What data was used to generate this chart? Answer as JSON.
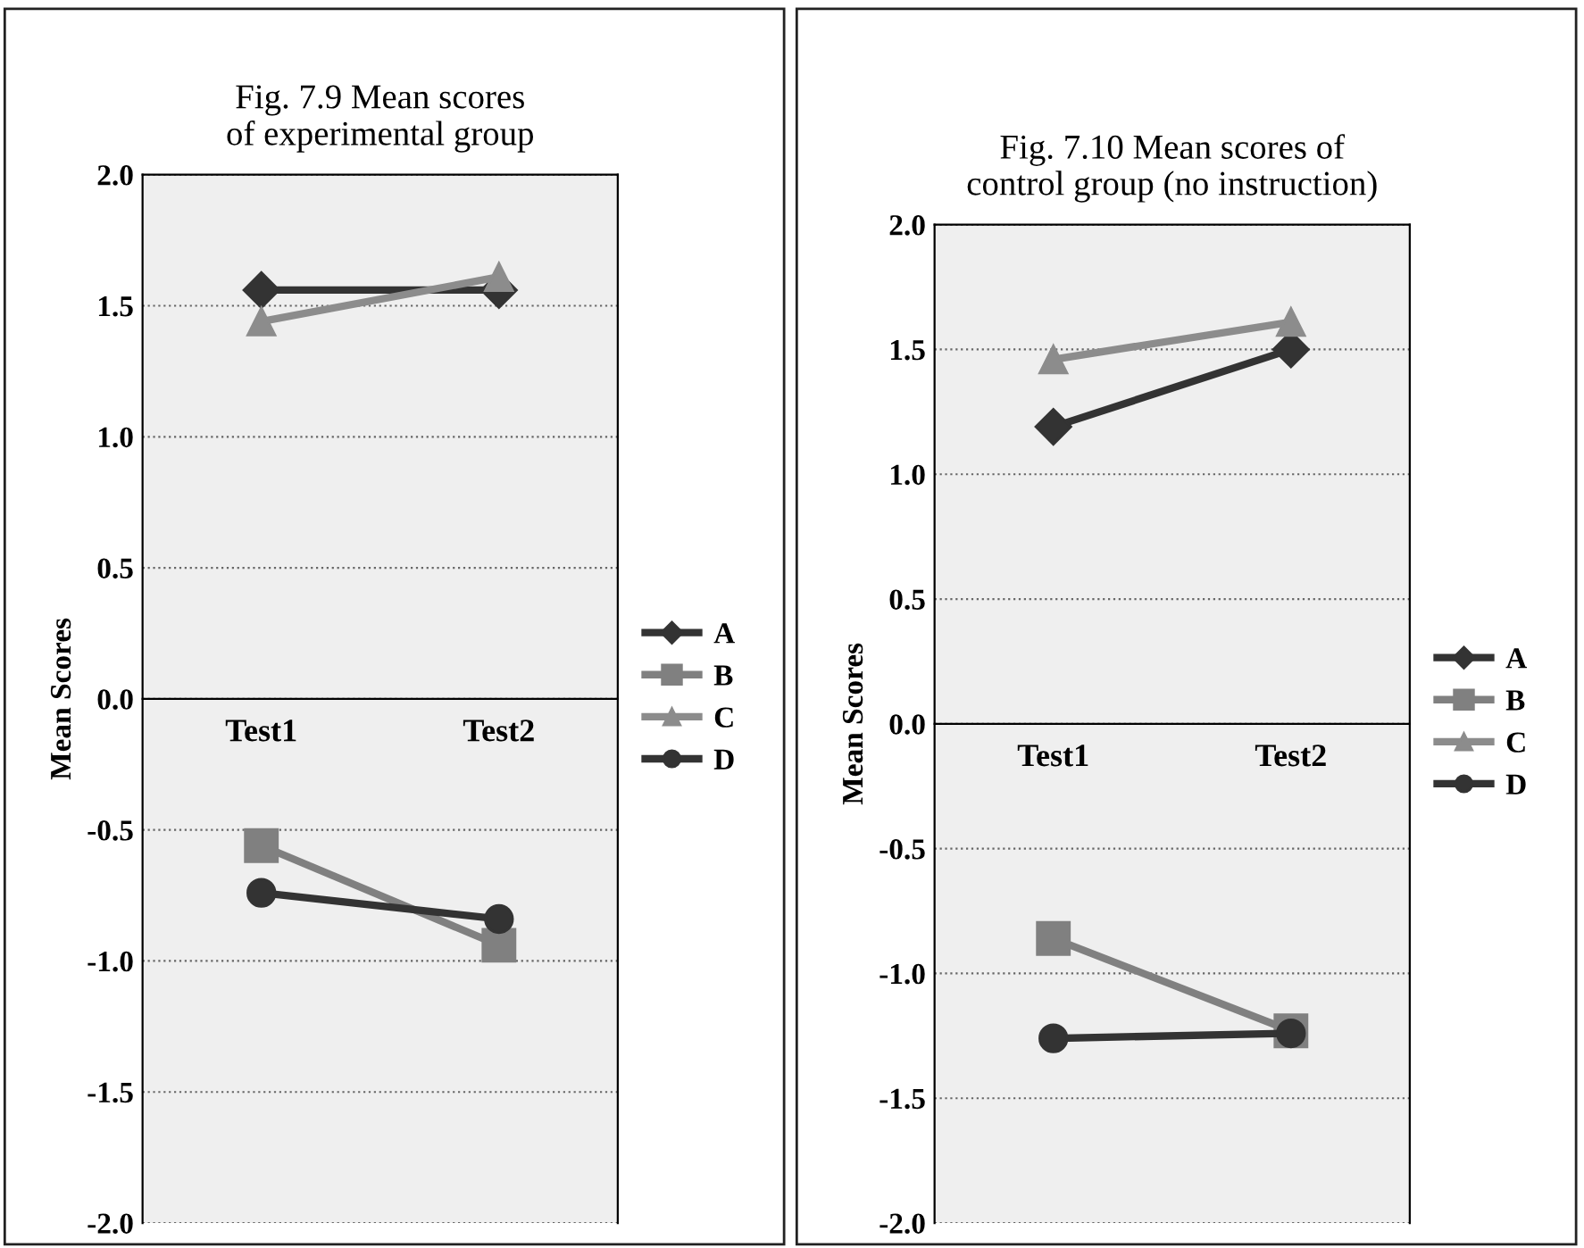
{
  "chart_data": [
    {
      "type": "line",
      "title": "Fig. 7.9 Mean scores\nof experimental group",
      "ylabel": "Mean Scores",
      "categories": [
        "Test1",
        "Test2"
      ],
      "ylim": [
        -2.0,
        2.0
      ],
      "yticks": [
        {
          "value": -2,
          "label": "-2.0"
        },
        {
          "value": -1.5,
          "label": "-1.5"
        },
        {
          "value": -1,
          "label": "-1.0"
        },
        {
          "value": -0.5,
          "label": "-0.5"
        },
        {
          "value": 0,
          "label": "0.0"
        },
        {
          "value": 0.5,
          "label": "0.5"
        },
        {
          "value": 1,
          "label": "1.0"
        },
        {
          "value": 1.5,
          "label": "1.5"
        },
        {
          "value": 2,
          "label": "2.0"
        }
      ],
      "grid": "y",
      "legend": "right",
      "series": [
        {
          "name": "A",
          "color": "#333333",
          "marker": "diamond",
          "values": [
            1.56,
            1.56
          ]
        },
        {
          "name": "B",
          "color": "#808080",
          "marker": "square",
          "values": [
            -0.56,
            -0.94
          ]
        },
        {
          "name": "C",
          "color": "#8c8c8c",
          "marker": "triangle",
          "values": [
            1.44,
            1.61
          ]
        },
        {
          "name": "D",
          "color": "#333333",
          "marker": "circle",
          "values": [
            -0.74,
            -0.84
          ]
        }
      ]
    },
    {
      "type": "line",
      "title": "Fig. 7.10 Mean scores of\ncontrol group (no instruction)",
      "ylabel": "Mean Scores",
      "categories": [
        "Test1",
        "Test2"
      ],
      "ylim": [
        -2.0,
        2.0
      ],
      "yticks": [
        {
          "value": -2,
          "label": "-2.0"
        },
        {
          "value": -1.5,
          "label": "-1.5"
        },
        {
          "value": -1,
          "label": "-1.0"
        },
        {
          "value": -0.5,
          "label": "-0.5"
        },
        {
          "value": 0,
          "label": "0.0"
        },
        {
          "value": 0.5,
          "label": "0.5"
        },
        {
          "value": 1,
          "label": "1.0"
        },
        {
          "value": 1.5,
          "label": "1.5"
        },
        {
          "value": 2,
          "label": "2.0"
        }
      ],
      "grid": "y",
      "legend": "right",
      "series": [
        {
          "name": "A",
          "color": "#333333",
          "marker": "diamond",
          "values": [
            1.19,
            1.5
          ]
        },
        {
          "name": "B",
          "color": "#808080",
          "marker": "square",
          "values": [
            -0.86,
            -1.23
          ]
        },
        {
          "name": "C",
          "color": "#8c8c8c",
          "marker": "triangle",
          "values": [
            1.46,
            1.61
          ]
        },
        {
          "name": "D",
          "color": "#333333",
          "marker": "circle",
          "values": [
            -1.26,
            -1.24
          ]
        }
      ]
    }
  ]
}
